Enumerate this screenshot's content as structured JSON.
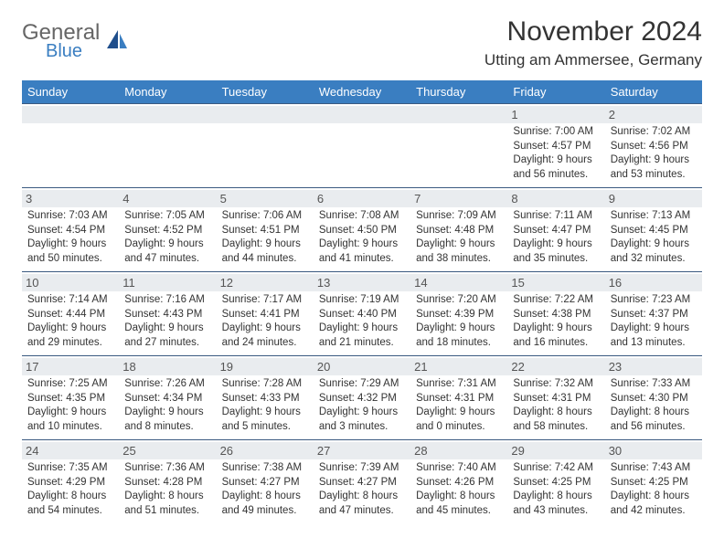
{
  "logo": {
    "word1": "General",
    "word2": "Blue"
  },
  "title": "November 2024",
  "location": "Utting am Ammersee, Germany",
  "colors": {
    "header_bg": "#3a7ec1",
    "header_text": "#ffffff",
    "daynum_bg": "#e9ecef",
    "border": "#3a5a80",
    "body_text": "#333333",
    "logo_gray": "#666666",
    "logo_blue": "#3a7ec1"
  },
  "weekdays": [
    "Sunday",
    "Monday",
    "Tuesday",
    "Wednesday",
    "Thursday",
    "Friday",
    "Saturday"
  ],
  "weeks": [
    [
      null,
      null,
      null,
      null,
      null,
      {
        "n": "1",
        "sr": "7:00 AM",
        "ss": "4:57 PM",
        "dl": "9 hours and 56 minutes."
      },
      {
        "n": "2",
        "sr": "7:02 AM",
        "ss": "4:56 PM",
        "dl": "9 hours and 53 minutes."
      }
    ],
    [
      {
        "n": "3",
        "sr": "7:03 AM",
        "ss": "4:54 PM",
        "dl": "9 hours and 50 minutes."
      },
      {
        "n": "4",
        "sr": "7:05 AM",
        "ss": "4:52 PM",
        "dl": "9 hours and 47 minutes."
      },
      {
        "n": "5",
        "sr": "7:06 AM",
        "ss": "4:51 PM",
        "dl": "9 hours and 44 minutes."
      },
      {
        "n": "6",
        "sr": "7:08 AM",
        "ss": "4:50 PM",
        "dl": "9 hours and 41 minutes."
      },
      {
        "n": "7",
        "sr": "7:09 AM",
        "ss": "4:48 PM",
        "dl": "9 hours and 38 minutes."
      },
      {
        "n": "8",
        "sr": "7:11 AM",
        "ss": "4:47 PM",
        "dl": "9 hours and 35 minutes."
      },
      {
        "n": "9",
        "sr": "7:13 AM",
        "ss": "4:45 PM",
        "dl": "9 hours and 32 minutes."
      }
    ],
    [
      {
        "n": "10",
        "sr": "7:14 AM",
        "ss": "4:44 PM",
        "dl": "9 hours and 29 minutes."
      },
      {
        "n": "11",
        "sr": "7:16 AM",
        "ss": "4:43 PM",
        "dl": "9 hours and 27 minutes."
      },
      {
        "n": "12",
        "sr": "7:17 AM",
        "ss": "4:41 PM",
        "dl": "9 hours and 24 minutes."
      },
      {
        "n": "13",
        "sr": "7:19 AM",
        "ss": "4:40 PM",
        "dl": "9 hours and 21 minutes."
      },
      {
        "n": "14",
        "sr": "7:20 AM",
        "ss": "4:39 PM",
        "dl": "9 hours and 18 minutes."
      },
      {
        "n": "15",
        "sr": "7:22 AM",
        "ss": "4:38 PM",
        "dl": "9 hours and 16 minutes."
      },
      {
        "n": "16",
        "sr": "7:23 AM",
        "ss": "4:37 PM",
        "dl": "9 hours and 13 minutes."
      }
    ],
    [
      {
        "n": "17",
        "sr": "7:25 AM",
        "ss": "4:35 PM",
        "dl": "9 hours and 10 minutes."
      },
      {
        "n": "18",
        "sr": "7:26 AM",
        "ss": "4:34 PM",
        "dl": "9 hours and 8 minutes."
      },
      {
        "n": "19",
        "sr": "7:28 AM",
        "ss": "4:33 PM",
        "dl": "9 hours and 5 minutes."
      },
      {
        "n": "20",
        "sr": "7:29 AM",
        "ss": "4:32 PM",
        "dl": "9 hours and 3 minutes."
      },
      {
        "n": "21",
        "sr": "7:31 AM",
        "ss": "4:31 PM",
        "dl": "9 hours and 0 minutes."
      },
      {
        "n": "22",
        "sr": "7:32 AM",
        "ss": "4:31 PM",
        "dl": "8 hours and 58 minutes."
      },
      {
        "n": "23",
        "sr": "7:33 AM",
        "ss": "4:30 PM",
        "dl": "8 hours and 56 minutes."
      }
    ],
    [
      {
        "n": "24",
        "sr": "7:35 AM",
        "ss": "4:29 PM",
        "dl": "8 hours and 54 minutes."
      },
      {
        "n": "25",
        "sr": "7:36 AM",
        "ss": "4:28 PM",
        "dl": "8 hours and 51 minutes."
      },
      {
        "n": "26",
        "sr": "7:38 AM",
        "ss": "4:27 PM",
        "dl": "8 hours and 49 minutes."
      },
      {
        "n": "27",
        "sr": "7:39 AM",
        "ss": "4:27 PM",
        "dl": "8 hours and 47 minutes."
      },
      {
        "n": "28",
        "sr": "7:40 AM",
        "ss": "4:26 PM",
        "dl": "8 hours and 45 minutes."
      },
      {
        "n": "29",
        "sr": "7:42 AM",
        "ss": "4:25 PM",
        "dl": "8 hours and 43 minutes."
      },
      {
        "n": "30",
        "sr": "7:43 AM",
        "ss": "4:25 PM",
        "dl": "8 hours and 42 minutes."
      }
    ]
  ],
  "labels": {
    "sunrise": "Sunrise: ",
    "sunset": "Sunset: ",
    "daylight": "Daylight: "
  }
}
